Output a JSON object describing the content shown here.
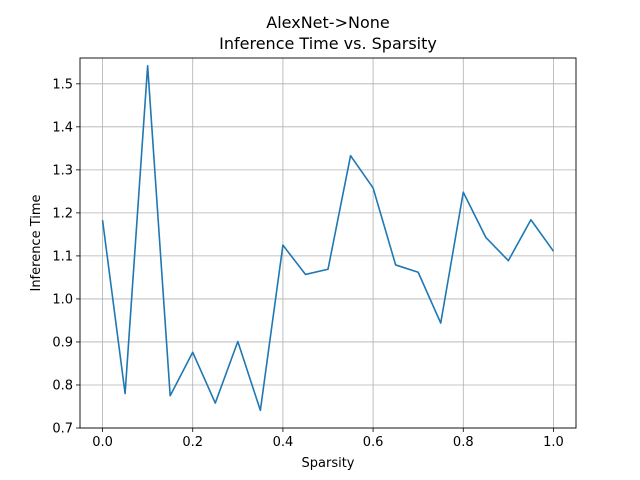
{
  "chart_data": {
    "type": "line",
    "title": "AlexNet->None",
    "subtitle": "Inference Time vs. Sparsity",
    "xlabel": "Sparsity",
    "ylabel": "Inference Time",
    "xlim": [
      -0.05,
      1.05
    ],
    "ylim": [
      0.7,
      1.56
    ],
    "xticks": [
      0.0,
      0.2,
      0.4,
      0.6,
      0.8,
      1.0
    ],
    "xtick_labels": [
      "0.0",
      "0.2",
      "0.4",
      "0.6",
      "0.8",
      "1.0"
    ],
    "yticks": [
      0.7,
      0.8,
      0.9,
      1.0,
      1.1,
      1.2,
      1.3,
      1.4,
      1.5
    ],
    "ytick_labels": [
      "0.7",
      "0.8",
      "0.9",
      "1.0",
      "1.1",
      "1.2",
      "1.3",
      "1.4",
      "1.5"
    ],
    "grid": true,
    "line_color": "#1f77b4",
    "x": [
      0.0,
      0.05,
      0.1,
      0.15,
      0.2,
      0.25,
      0.3,
      0.35,
      0.4,
      0.45,
      0.5,
      0.55,
      0.6,
      0.65,
      0.7,
      0.75,
      0.8,
      0.85,
      0.9,
      0.95,
      1.0
    ],
    "y": [
      1.183,
      0.78,
      1.542,
      0.775,
      0.876,
      0.758,
      0.901,
      0.741,
      1.125,
      1.057,
      1.069,
      1.333,
      1.258,
      1.079,
      1.062,
      0.944,
      1.248,
      1.143,
      1.089,
      1.184,
      1.111
    ]
  }
}
